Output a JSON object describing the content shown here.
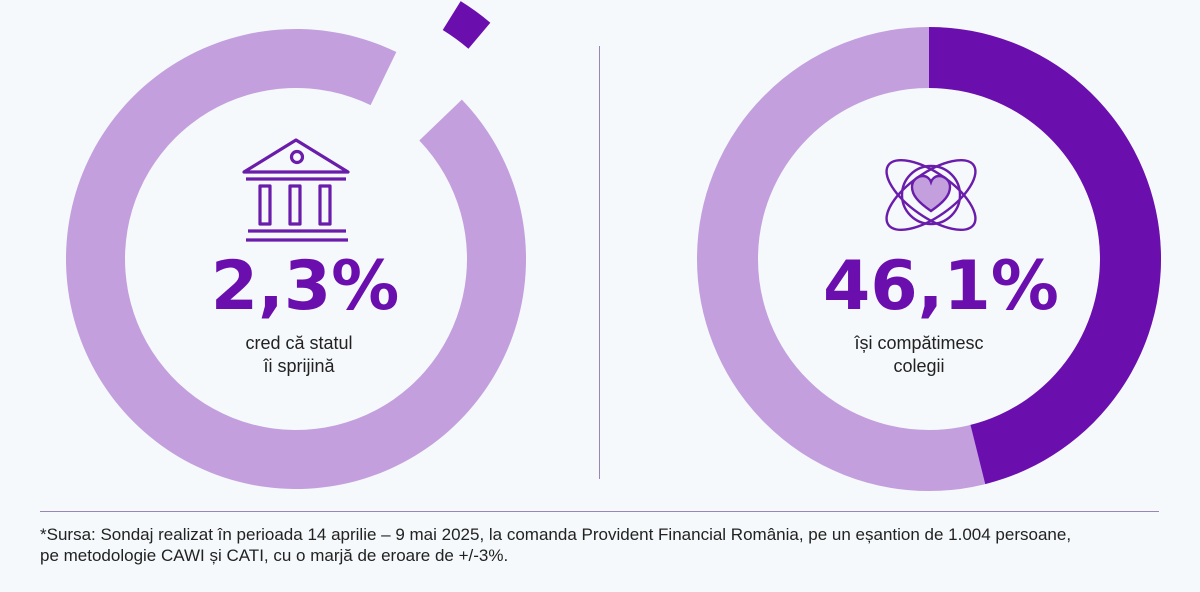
{
  "colors": {
    "accent": "#6a0fae",
    "ring": "#c39fde",
    "hole": "#f5f9fb",
    "icon": "#6a1cab"
  },
  "chart_data": [
    {
      "type": "pie",
      "variant": "donut",
      "value_percent": 2.3,
      "value_label": "2,3%",
      "caption": [
        "cred că statul",
        "îi sprijină"
      ],
      "icon": "bank-building-icon"
    },
    {
      "type": "pie",
      "variant": "donut",
      "value_percent": 46.1,
      "value_label": "46,1%",
      "caption": [
        "își compătimesc",
        "colegii"
      ],
      "icon": "heart-orbit-icon"
    }
  ],
  "footnote": {
    "line1": "*Sursa: Sondaj realizat în perioada 14 aprilie – 9 mai 2025, la comanda Provident Financial România, pe un eșantion de 1.004 persoane,",
    "line2": "pe metodologie CAWI și CATI, cu o marjă de eroare de +/-3%."
  }
}
